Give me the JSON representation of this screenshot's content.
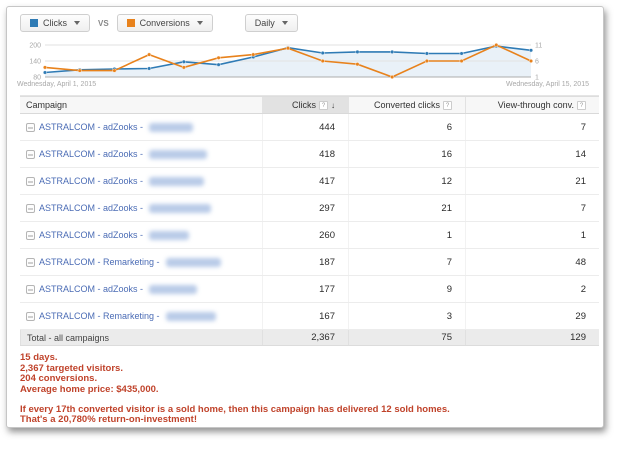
{
  "toolbar": {
    "metric1": {
      "label": "Clicks",
      "color": "#2f7bb5"
    },
    "vs_label": "VS",
    "metric2": {
      "label": "Conversions",
      "color": "#e8821c"
    },
    "interval": {
      "label": "Daily"
    }
  },
  "chart_data": {
    "type": "line",
    "x_start_label": "Wednesday, April 1, 2015",
    "x_end_label": "Wednesday, April 15, 2015",
    "x": [
      "Apr 1",
      "Apr 2",
      "Apr 3",
      "Apr 4",
      "Apr 5",
      "Apr 6",
      "Apr 7",
      "Apr 8",
      "Apr 9",
      "Apr 10",
      "Apr 11",
      "Apr 12",
      "Apr 13",
      "Apr 14",
      "Apr 15"
    ],
    "series": [
      {
        "name": "Clicks",
        "axis": "left",
        "color": "#2f7bb5",
        "values": [
          97,
          107,
          110,
          112,
          137,
          126,
          155,
          190,
          170,
          174,
          174,
          168,
          168,
          196,
          180
        ]
      },
      {
        "name": "Conversions",
        "axis": "right",
        "color": "#e8821c",
        "values": [
          4,
          3,
          3,
          8,
          4,
          7,
          8,
          10,
          6,
          5,
          1,
          6,
          6,
          11,
          6
        ]
      }
    ],
    "left_axis": {
      "ticks": [
        200,
        140,
        80
      ],
      "min": 80,
      "max": 200
    },
    "right_axis": {
      "ticks": [
        11,
        6,
        1
      ],
      "min": 1,
      "max": 11
    },
    "grid": true,
    "legend_position": "none",
    "fill_under_first_series": true,
    "fill_color": "#ddeaf5"
  },
  "table": {
    "columns": [
      "Campaign",
      "Clicks",
      "Converted clicks",
      "View-through conv."
    ],
    "sorted_column": "Clicks",
    "sort_direction": "desc",
    "rows": [
      {
        "campaign": "ASTRALCOM - adZooks -",
        "clicks": "444",
        "converted": "6",
        "view_through": "7",
        "redacted_width": 44
      },
      {
        "campaign": "ASTRALCOM - adZooks -",
        "clicks": "418",
        "converted": "16",
        "view_through": "14",
        "redacted_width": 58
      },
      {
        "campaign": "ASTRALCOM - adZooks -",
        "clicks": "417",
        "converted": "12",
        "view_through": "21",
        "redacted_width": 55
      },
      {
        "campaign": "ASTRALCOM - adZooks -",
        "clicks": "297",
        "converted": "21",
        "view_through": "7",
        "redacted_width": 62
      },
      {
        "campaign": "ASTRALCOM - adZooks -",
        "clicks": "260",
        "converted": "1",
        "view_through": "1",
        "redacted_width": 40
      },
      {
        "campaign": "ASTRALCOM - Remarketing -",
        "clicks": "187",
        "converted": "7",
        "view_through": "48",
        "redacted_width": 55
      },
      {
        "campaign": "ASTRALCOM - adZooks -",
        "clicks": "177",
        "converted": "9",
        "view_through": "2",
        "redacted_width": 48
      },
      {
        "campaign": "ASTRALCOM - Remarketing -",
        "clicks": "167",
        "converted": "3",
        "view_through": "29",
        "redacted_width": 50
      }
    ],
    "total": {
      "label": "Total - all campaigns",
      "clicks": "2,367",
      "converted": "75",
      "view_through": "129"
    }
  },
  "summary": {
    "color": "#c0432b",
    "lines_block1": [
      "15 days.",
      "2,367 targeted visitors.",
      "204 conversions.",
      "Average home price: $435,000."
    ],
    "lines_block2": [
      "If every 17th converted visitor is a sold home, then this campaign has delivered 12 sold homes.",
      "That's a 20,780% return-on-investment!"
    ]
  }
}
